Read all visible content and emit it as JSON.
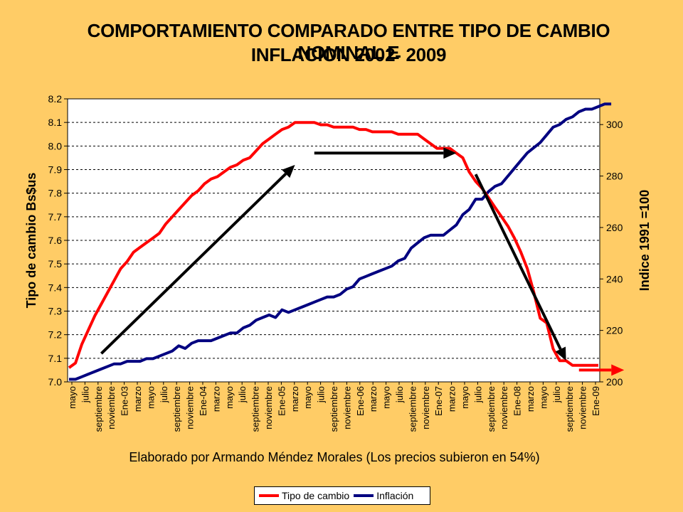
{
  "title_line1": "COMPORTAMIENTO COMPARADO ENTRE TIPO DE CAMBIO NOMINAL E",
  "title_line2": "INFLACION  2002- 2009",
  "credit": "Elaborado por Armando Méndez Morales (Los precios subieron en 54%)",
  "colors": {
    "exchange": "#FF0000",
    "inflation": "#000080",
    "arrow": "#000000",
    "plot_bg": "#FFFFFF",
    "page_bg": "#FFCC66"
  },
  "chart_data": {
    "type": "line",
    "ylabel": "Tipo de cambio Bs$us",
    "y2label": "Indice 1991 =100",
    "ylim": [
      7.0,
      8.2
    ],
    "y2lim": [
      200,
      310
    ],
    "yticks": [
      "7.0",
      "7.1",
      "7.2",
      "7.3",
      "7.4",
      "7.5",
      "7.6",
      "7.7",
      "7.8",
      "7.9",
      "8.0",
      "8.1",
      "8.2"
    ],
    "y2ticks": [
      "200",
      "220",
      "240",
      "260",
      "280",
      "300"
    ],
    "grid": "horizontal dashed",
    "legend_position": "bottom",
    "x_tick_labels": [
      "mayo",
      "julio",
      "septiembre",
      "noviembre",
      "Ene-03",
      "marzo",
      "mayo",
      "julio",
      "septiembre",
      "noviembre",
      "Ene-04",
      "marzo",
      "mayo",
      "julio",
      "septiembre",
      "noviembre",
      "Ene-05",
      "marzo",
      "mayo",
      "julio",
      "septiembre",
      "noviembre",
      "Ene-06",
      "marzo",
      "mayo",
      "julio",
      "septiembre",
      "noviembre",
      "Ene-07",
      "marzo",
      "mayo",
      "julio",
      "septiembre",
      "noviembre",
      "Ene-08",
      "marzo",
      "mayo",
      "julio",
      "septiembre",
      "noviembre",
      "Ene-09"
    ],
    "series": [
      {
        "name": "Tipo de cambio",
        "axis": "left",
        "values": [
          7.06,
          7.08,
          7.16,
          7.22,
          7.28,
          7.33,
          7.38,
          7.43,
          7.48,
          7.51,
          7.55,
          7.57,
          7.59,
          7.61,
          7.63,
          7.67,
          7.7,
          7.73,
          7.76,
          7.79,
          7.81,
          7.84,
          7.86,
          7.87,
          7.89,
          7.91,
          7.92,
          7.94,
          7.95,
          7.98,
          8.01,
          8.03,
          8.05,
          8.07,
          8.08,
          8.1,
          8.1,
          8.1,
          8.1,
          8.09,
          8.09,
          8.08,
          8.08,
          8.08,
          8.08,
          8.07,
          8.07,
          8.06,
          8.06,
          8.06,
          8.06,
          8.05,
          8.05,
          8.05,
          8.05,
          8.03,
          8.01,
          7.99,
          7.99,
          7.99,
          7.97,
          7.95,
          7.89,
          7.85,
          7.82,
          7.78,
          7.74,
          7.7,
          7.66,
          7.61,
          7.55,
          7.48,
          7.38,
          7.27,
          7.25,
          7.14,
          7.09,
          7.09,
          7.07,
          7.07,
          7.07,
          7.07,
          7.07
        ]
      },
      {
        "name": "Inflación",
        "axis": "right",
        "values": [
          201,
          201,
          202,
          203,
          204,
          205,
          206,
          207,
          207,
          208,
          208,
          208,
          209,
          209,
          210,
          211,
          212,
          214,
          213,
          215,
          216,
          216,
          216,
          217,
          218,
          219,
          219,
          221,
          222,
          224,
          225,
          226,
          225,
          228,
          227,
          228,
          229,
          230,
          231,
          232,
          233,
          233,
          234,
          236,
          237,
          240,
          241,
          242,
          243,
          244,
          245,
          247,
          248,
          252,
          254,
          256,
          257,
          257,
          257,
          259,
          261,
          265,
          267,
          271,
          271,
          274,
          276,
          277,
          280,
          283,
          286,
          289,
          291,
          293,
          296,
          299,
          300,
          302,
          303,
          305,
          306,
          306,
          307,
          308,
          308
        ]
      }
    ],
    "annotations": [
      {
        "type": "arrow",
        "color": "black",
        "from": [
          5,
          7.12
        ],
        "to": [
          35,
          7.92
        ]
      },
      {
        "type": "arrow",
        "color": "black",
        "from": [
          38,
          7.97
        ],
        "to": [
          60,
          7.97
        ]
      },
      {
        "type": "arrow",
        "color": "black",
        "from": [
          63,
          7.88
        ],
        "to": [
          77,
          7.09
        ]
      },
      {
        "type": "arrow",
        "color": "red",
        "from": [
          79,
          7.05
        ],
        "to": [
          86,
          7.05
        ]
      }
    ]
  }
}
